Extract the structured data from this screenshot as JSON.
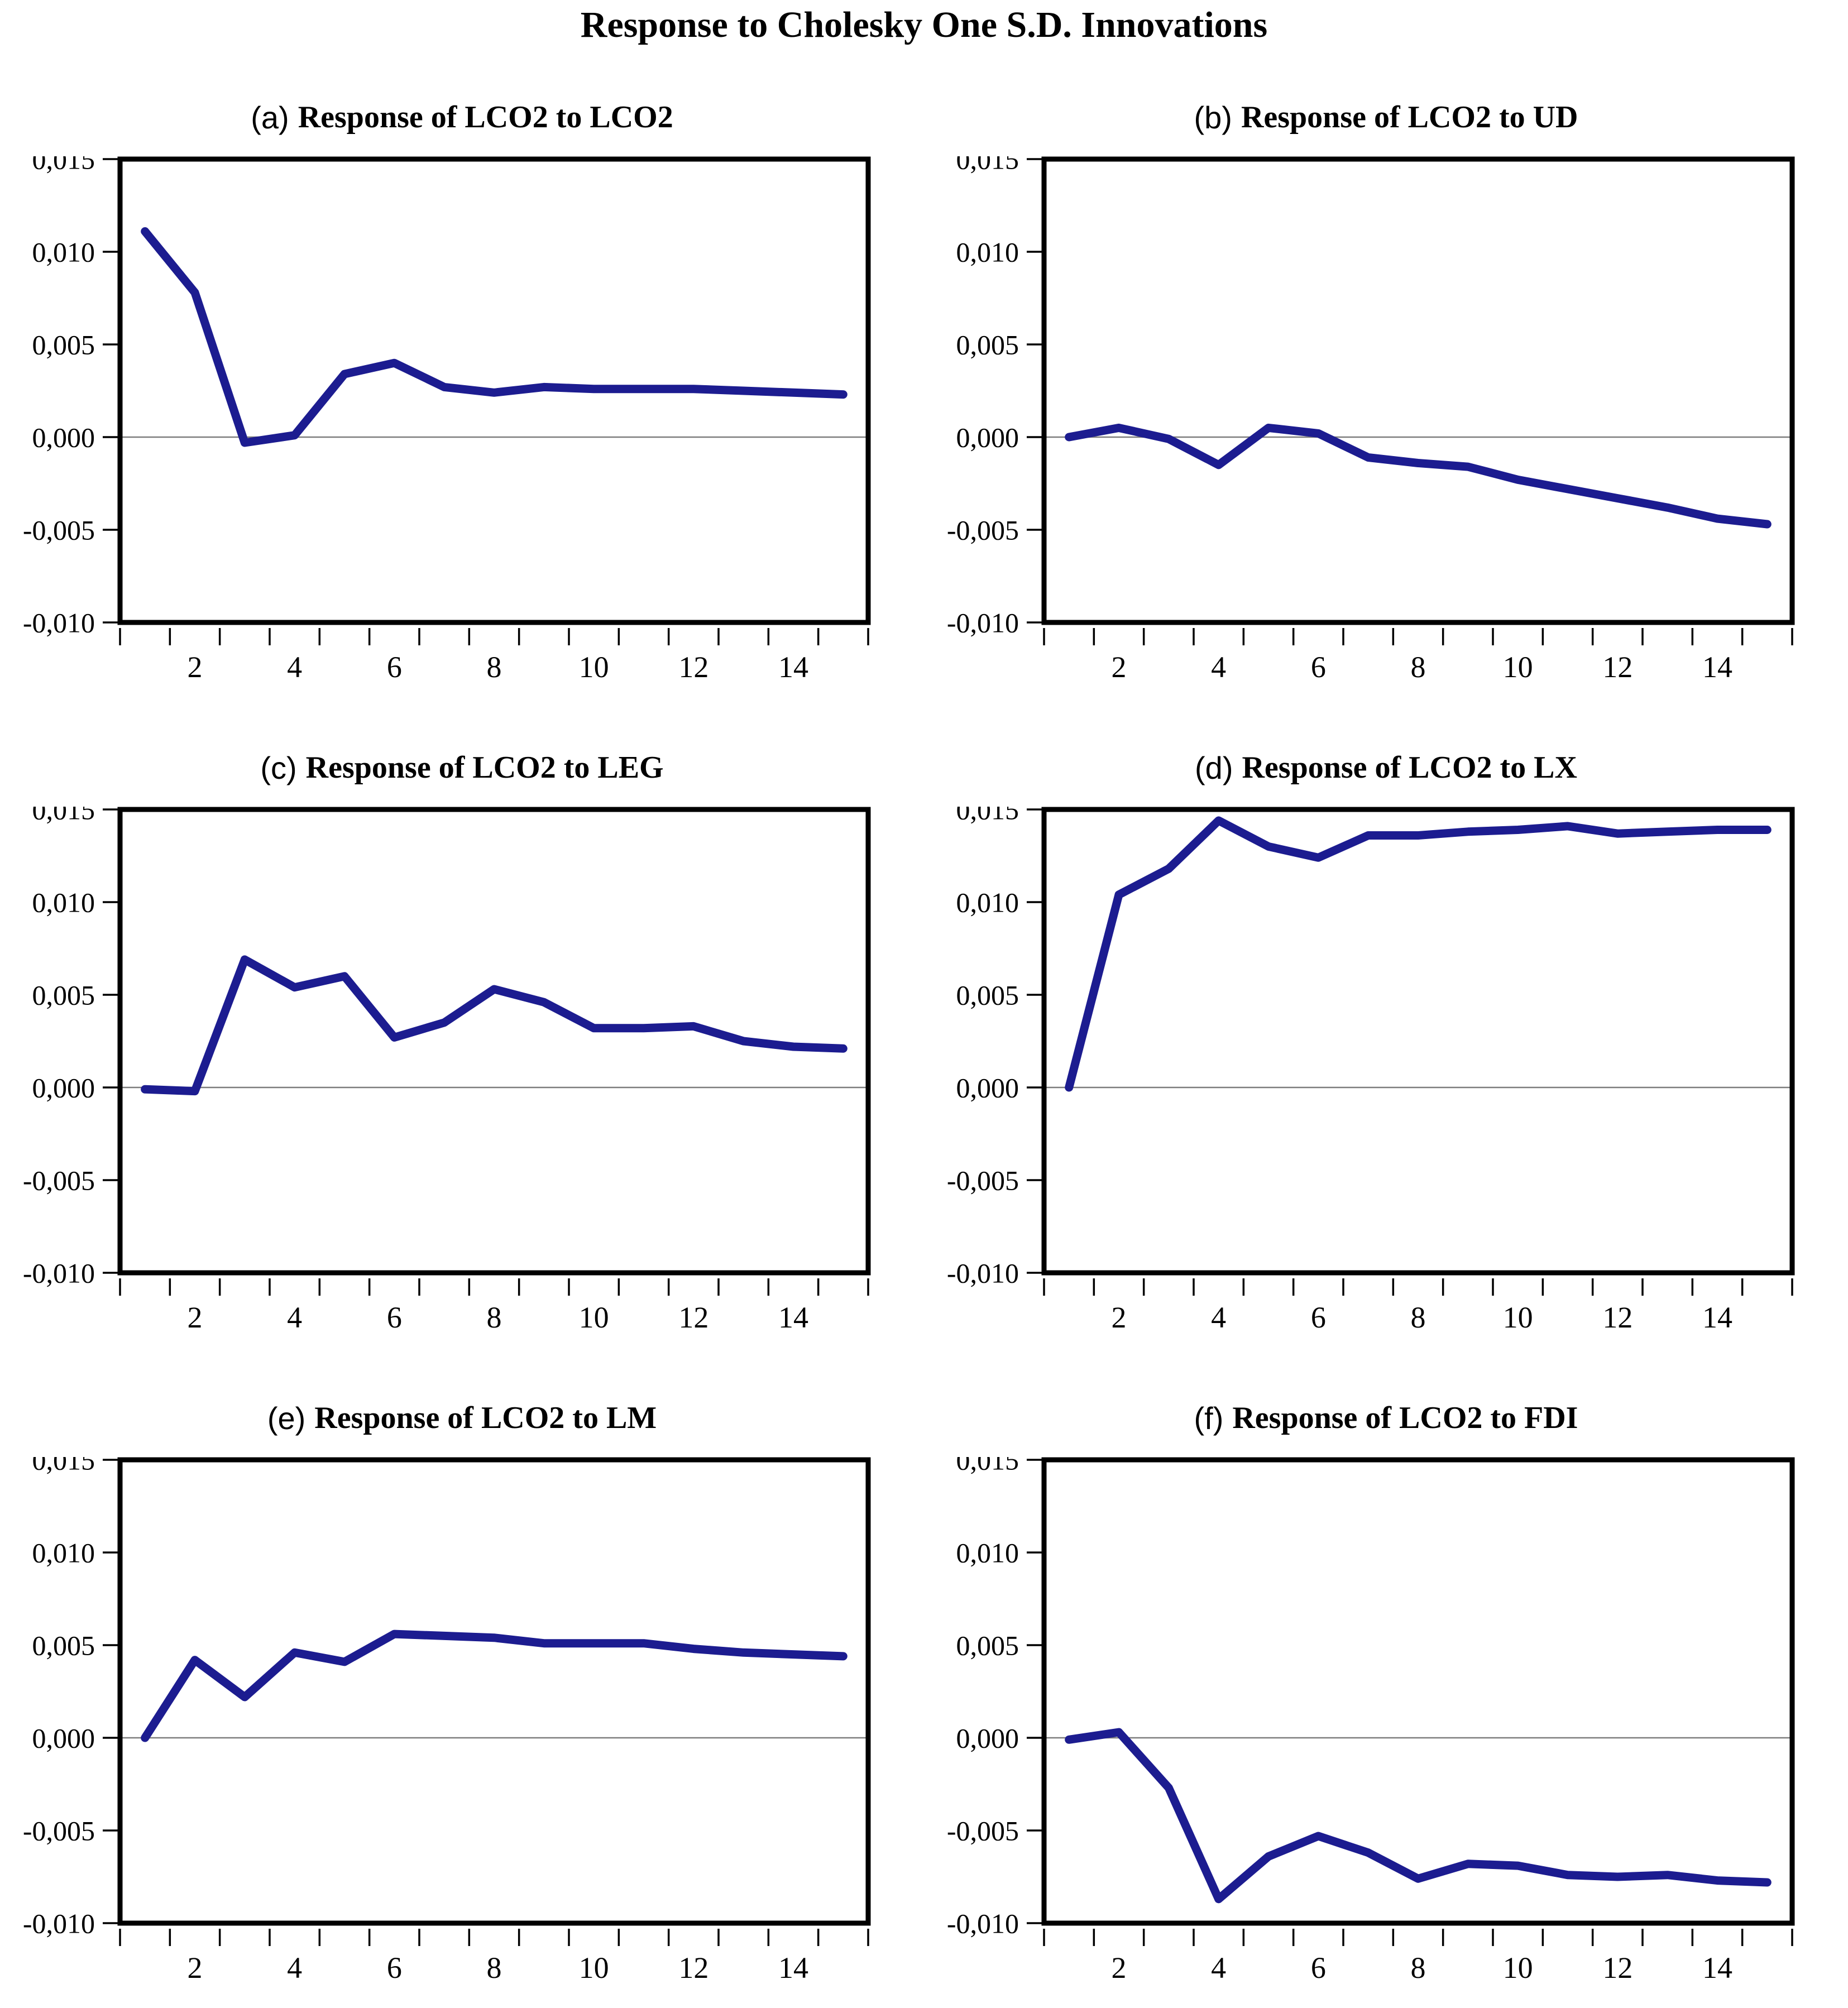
{
  "chart_data": {
    "type": "line",
    "title": "Response to Cholesky One S.D. Innovations",
    "x": [
      1,
      2,
      3,
      4,
      5,
      6,
      7,
      8,
      9,
      10,
      11,
      12,
      13,
      14,
      15
    ],
    "xlim": [
      0.5,
      15.5
    ],
    "ylim": [
      -0.01,
      0.015
    ],
    "yticks": [
      0.015,
      0.01,
      0.005,
      0.0,
      -0.005,
      -0.01
    ],
    "ytick_labels": [
      "0,015",
      "0,010",
      "0,005",
      "0,000",
      "-0,005",
      "-0,010"
    ],
    "xticks_labeled": [
      2,
      4,
      6,
      8,
      10,
      12,
      14
    ],
    "xtick_labels": [
      "2",
      "4",
      "6",
      "8",
      "10",
      "12",
      "14"
    ],
    "x_minor_ticks": "every integer interval, marks at half-integers 0.5 to 15.5",
    "decimal_separator": "comma",
    "legend": "none",
    "grid": "horizontal zero line only",
    "line_color": "#1c1c90",
    "zero_line_color": "#7d7d7d",
    "panels": [
      {
        "panel_label": "(a)",
        "title": "Response of LCO2 to LCO2",
        "values": [
          0.0111,
          0.0078,
          -0.0003,
          0.0001,
          0.0034,
          0.004,
          0.0027,
          0.0024,
          0.0027,
          0.0026,
          0.0026,
          0.0026,
          0.0025,
          0.0024,
          0.0023
        ]
      },
      {
        "panel_label": "(b)",
        "title": "Response of LCO2 to UD",
        "values": [
          0.0,
          0.0005,
          -0.0001,
          -0.0015,
          0.0005,
          0.0002,
          -0.0011,
          -0.0014,
          -0.0016,
          -0.0023,
          -0.0028,
          -0.0033,
          -0.0038,
          -0.0044,
          -0.0047
        ]
      },
      {
        "panel_label": "(c)",
        "title": "Response of LCO2 to LEG",
        "values": [
          -0.0001,
          -0.0002,
          0.0069,
          0.0054,
          0.006,
          0.0027,
          0.0035,
          0.0053,
          0.0046,
          0.0032,
          0.0032,
          0.0033,
          0.0025,
          0.0022,
          0.0021
        ]
      },
      {
        "panel_label": "(d)",
        "title": "Response of LCO2 to LX",
        "values": [
          0.0,
          0.0104,
          0.0118,
          0.0144,
          0.013,
          0.0124,
          0.0136,
          0.0136,
          0.0138,
          0.0139,
          0.0141,
          0.0137,
          0.0138,
          0.0139,
          0.0139
        ]
      },
      {
        "panel_label": "(e)",
        "title": "Response of LCO2 to LM",
        "values": [
          0.0,
          0.0042,
          0.0022,
          0.0046,
          0.0041,
          0.0056,
          0.0055,
          0.0054,
          0.0051,
          0.0051,
          0.0051,
          0.0048,
          0.0046,
          0.0045,
          0.0044
        ]
      },
      {
        "panel_label": "(f)",
        "title": "Response of LCO2 to FDI",
        "values": [
          -0.0001,
          0.0003,
          -0.0027,
          -0.0087,
          -0.0064,
          -0.0053,
          -0.0062,
          -0.0076,
          -0.0068,
          -0.0069,
          -0.0074,
          -0.0075,
          -0.0074,
          -0.0077,
          -0.0078
        ]
      }
    ]
  }
}
